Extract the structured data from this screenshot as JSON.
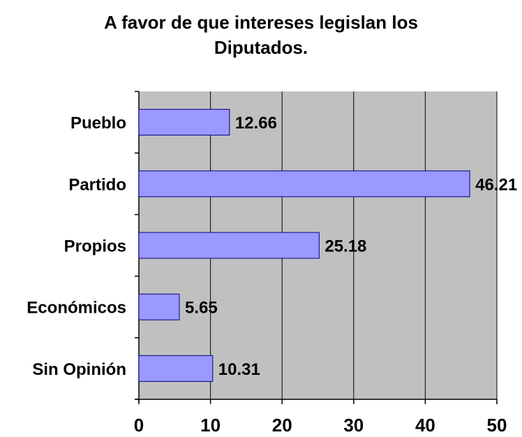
{
  "chart_data": {
    "type": "bar",
    "orientation": "horizontal",
    "title_lines": [
      "A favor de que intereses legislan los",
      "Diputados."
    ],
    "categories": [
      "Pueblo",
      "Partido",
      "Propios",
      "Económicos",
      "Sin Opinión"
    ],
    "values": [
      12.66,
      46.21,
      25.18,
      5.65,
      10.31
    ],
    "value_labels": [
      "12.66",
      "46.21",
      "25.18",
      "5.65",
      "10.31"
    ],
    "xlim": [
      0,
      50
    ],
    "xticks": [
      0,
      10,
      20,
      30,
      40,
      50
    ],
    "xlabel": "",
    "ylabel": "",
    "grid": "vertical",
    "legend": "none",
    "colors": {
      "bar_fill": "#9999ff",
      "bar_stroke": "#000080",
      "plot_background": "#c0c0c0",
      "gridline": "#000000"
    }
  }
}
